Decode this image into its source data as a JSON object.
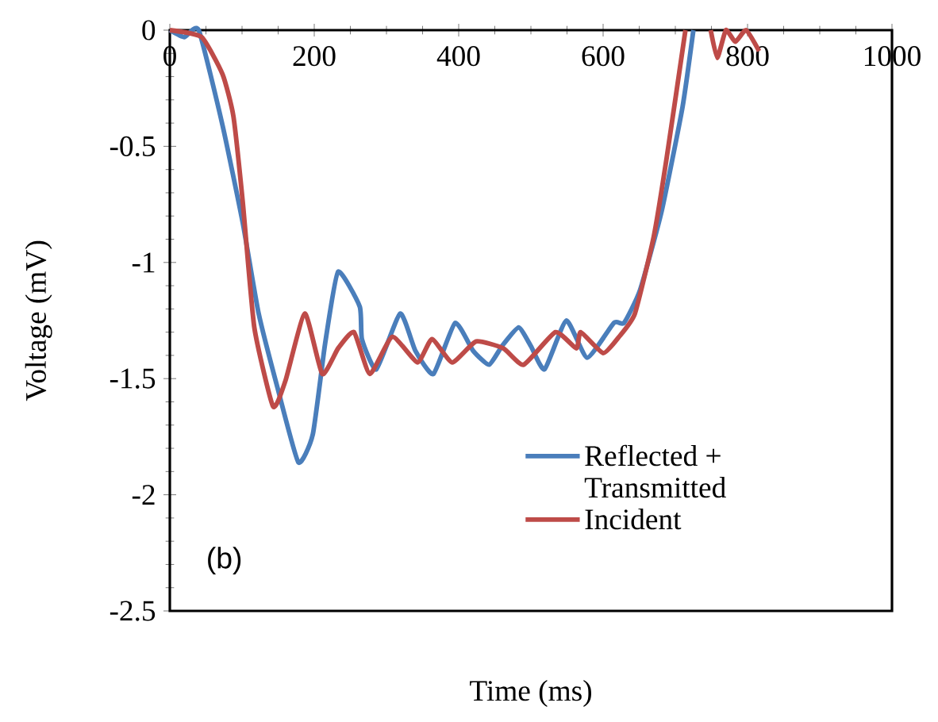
{
  "chart_data": {
    "type": "line",
    "xlabel": "Time (ms)",
    "ylabel": "Voltage (mV)",
    "xlim": [
      0,
      1000
    ],
    "ylim": [
      -2.5,
      0
    ],
    "xticks": [
      0,
      200,
      400,
      600,
      800,
      1000
    ],
    "yticks": [
      0,
      -0.5,
      -1,
      -1.5,
      -2,
      -2.5
    ],
    "legend": "bottom right",
    "annotations": [
      "(b)"
    ],
    "series": [
      {
        "name": "Reflected + Transmitted",
        "color": "#4a7ebb",
        "x": [
          0,
          20,
          40,
          73,
          101,
          123,
          150,
          178,
          198,
          215,
          233,
          263,
          266,
          286,
          319,
          340,
          365,
          395,
          420,
          442,
          460,
          483,
          500,
          519,
          549,
          578,
          615,
          629,
          651,
          681,
          710,
          725
        ],
        "values": [
          0,
          -0.03,
          0,
          -0.41,
          -0.83,
          -1.22,
          -1.55,
          -1.86,
          -1.74,
          -1.35,
          -1.04,
          -1.19,
          -1.33,
          -1.46,
          -1.22,
          -1.38,
          -1.48,
          -1.26,
          -1.38,
          -1.44,
          -1.36,
          -1.28,
          -1.36,
          -1.46,
          -1.25,
          -1.41,
          -1.26,
          -1.26,
          -1.12,
          -0.78,
          -0.33,
          0
        ]
      },
      {
        "name": "Incident",
        "color": "#be4b48",
        "x": [
          0,
          44,
          73,
          88,
          101,
          117,
          143,
          160,
          187,
          211,
          233,
          255,
          277,
          308,
          343,
          363,
          391,
          424,
          462,
          490,
          534,
          563,
          569,
          600,
          622,
          644,
          670,
          688,
          714,
          730,
          749,
          758,
          770,
          783,
          798,
          816
        ],
        "values": [
          0,
          -0.03,
          -0.19,
          -0.37,
          -0.74,
          -1.28,
          -1.62,
          -1.51,
          -1.22,
          -1.48,
          -1.37,
          -1.3,
          -1.48,
          -1.32,
          -1.43,
          -1.33,
          -1.43,
          -1.34,
          -1.37,
          -1.44,
          -1.3,
          -1.37,
          -1.3,
          -1.39,
          -1.32,
          -1.22,
          -0.89,
          -0.55,
          0,
          null,
          0,
          -0.12,
          0,
          -0.05,
          0,
          -0.09
        ]
      }
    ]
  }
}
